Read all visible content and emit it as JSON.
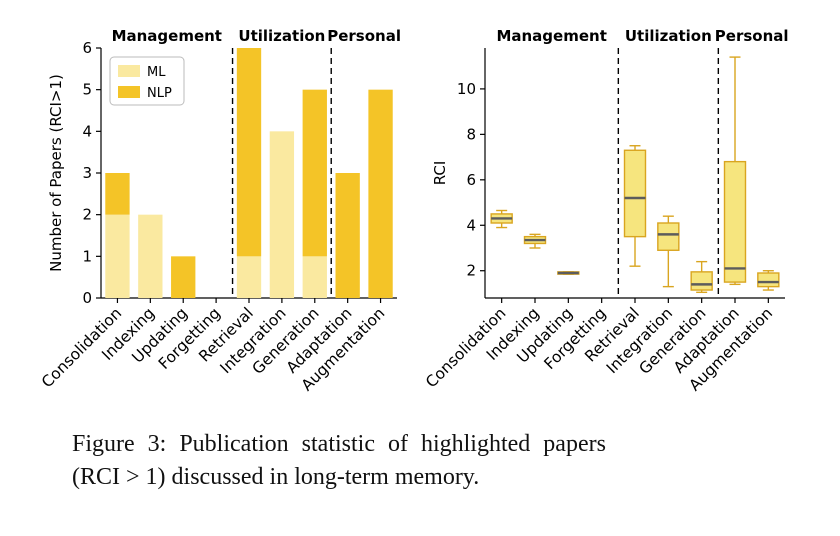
{
  "figure": {
    "caption_lines": [
      "Figure 3: Publication statistic of highlighted papers",
      "(RCI > 1) discussed in long-term memory."
    ]
  },
  "colors": {
    "ml": "#FAE9A0",
    "nlp": "#F4C427",
    "box_fill": "#F6E57E",
    "box_edge": "#D9A520",
    "median": "#5C5C5C",
    "axis": "#000000",
    "divider": "#000000",
    "legend_border": "#BBBBBB"
  },
  "chart_data": [
    {
      "type": "bar",
      "stacked": true,
      "ylabel": "Number of Papers (RCI>1)",
      "ylim": [
        0,
        6
      ],
      "yticks": [
        0,
        1,
        2,
        3,
        4,
        5,
        6
      ],
      "categories": [
        "Consolidation",
        "Indexing",
        "Updating",
        "Forgetting",
        "Retrieval",
        "Integration",
        "Generation",
        "Adaptation",
        "Augmentation"
      ],
      "series": [
        {
          "name": "ML",
          "color_key": "ml",
          "values": [
            2,
            2,
            0,
            0,
            1,
            4,
            1,
            0,
            0
          ]
        },
        {
          "name": "NLP",
          "color_key": "nlp",
          "values": [
            1,
            0,
            1,
            0,
            5,
            0,
            4,
            3,
            5
          ]
        }
      ],
      "legend": {
        "entries": [
          "ML",
          "NLP"
        ],
        "position": "upper-left"
      },
      "sections": [
        {
          "label": "Management",
          "from": 0,
          "to": 3
        },
        {
          "label": "Utilization",
          "from": 4,
          "to": 6
        },
        {
          "label": "Personal",
          "from": 7,
          "to": 8
        }
      ],
      "grid": false
    },
    {
      "type": "boxplot",
      "ylabel": "RCI",
      "ylim": [
        0.8,
        11.8
      ],
      "yticks": [
        2,
        4,
        6,
        8,
        10
      ],
      "categories": [
        "Consolidation",
        "Indexing",
        "Updating",
        "Forgetting",
        "Retrieval",
        "Integration",
        "Generation",
        "Adaptation",
        "Augmentation"
      ],
      "boxes": [
        {
          "category": "Consolidation",
          "whisker_low": 3.9,
          "q1": 4.1,
          "median": 4.3,
          "q3": 4.5,
          "whisker_high": 4.65
        },
        {
          "category": "Indexing",
          "whisker_low": 3.0,
          "q1": 3.2,
          "median": 3.35,
          "q3": 3.5,
          "whisker_high": 3.6
        },
        {
          "category": "Updating",
          "whisker_low": 1.85,
          "q1": 1.85,
          "median": 1.9,
          "q3": 1.95,
          "whisker_high": 1.95
        },
        {
          "category": "Forgetting",
          "whisker_low": null,
          "q1": null,
          "median": null,
          "q3": null,
          "whisker_high": null
        },
        {
          "category": "Retrieval",
          "whisker_low": 2.2,
          "q1": 3.5,
          "median": 5.2,
          "q3": 7.3,
          "whisker_high": 7.5
        },
        {
          "category": "Integration",
          "whisker_low": 1.3,
          "q1": 2.9,
          "median": 3.6,
          "q3": 4.1,
          "whisker_high": 4.4
        },
        {
          "category": "Generation",
          "whisker_low": 1.05,
          "q1": 1.15,
          "median": 1.4,
          "q3": 1.95,
          "whisker_high": 2.4
        },
        {
          "category": "Adaptation",
          "whisker_low": 1.4,
          "q1": 1.5,
          "median": 2.1,
          "q3": 6.8,
          "whisker_high": 11.4
        },
        {
          "category": "Augmentation",
          "whisker_low": 1.15,
          "q1": 1.3,
          "median": 1.5,
          "q3": 1.9,
          "whisker_high": 2.0
        }
      ],
      "sections": [
        {
          "label": "Management",
          "from": 0,
          "to": 3
        },
        {
          "label": "Utilization",
          "from": 4,
          "to": 6
        },
        {
          "label": "Personal",
          "from": 7,
          "to": 8
        }
      ],
      "grid": false
    }
  ]
}
